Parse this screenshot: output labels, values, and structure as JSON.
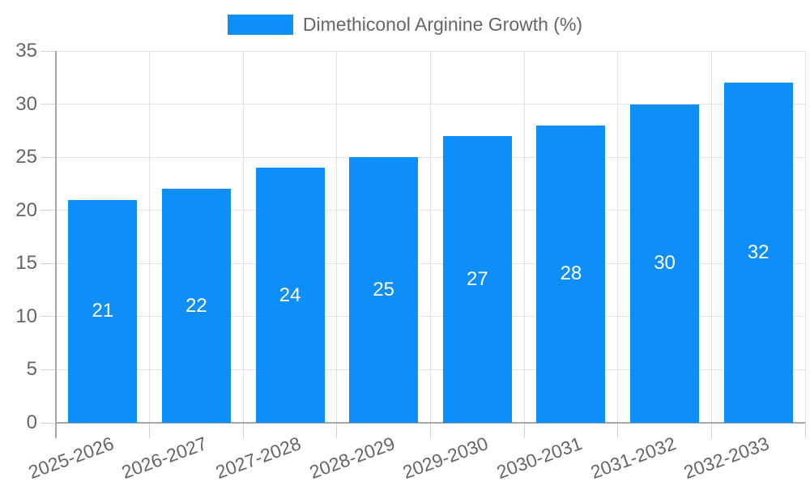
{
  "legend": {
    "label": "Dimethiconol Arginine Growth (%)"
  },
  "chart_data": {
    "type": "bar",
    "title": "Dimethiconol Arginine Growth (%)",
    "categories": [
      "2025-2026",
      "2026-2027",
      "2027-2028",
      "2028-2029",
      "2029-2030",
      "2030-2031",
      "2031-2032",
      "2032-2033"
    ],
    "values": [
      21,
      22,
      24,
      25,
      27,
      28,
      30,
      32
    ],
    "xlabel": "",
    "ylabel": "",
    "ylim": [
      0,
      35
    ],
    "yticks": [
      0,
      5,
      10,
      15,
      20,
      25,
      30,
      35
    ],
    "grid": true,
    "legend_position": "top-center",
    "value_label_position": "inside-center",
    "x_label_rotation_deg": -20
  },
  "colors": {
    "bar": "#0d8ef9",
    "grid": "#e3e3e3",
    "tick": "#d2d2d2",
    "axis": "#a6a6a6",
    "text": "#666666",
    "value_label": "#ffffff",
    "background": "#ffffff"
  }
}
